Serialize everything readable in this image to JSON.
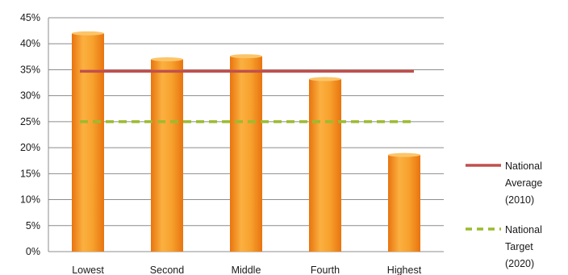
{
  "chart_data": {
    "type": "bar",
    "categories": [
      "Lowest",
      "Second",
      "Middle",
      "Fourth",
      "Highest"
    ],
    "values": [
      42,
      37,
      37.6,
      33.2,
      18.6
    ],
    "ylim": [
      0,
      45
    ],
    "yticks": [
      0,
      5,
      10,
      15,
      20,
      25,
      30,
      35,
      40,
      45
    ],
    "ytick_labels": [
      "0%",
      "5%",
      "10%",
      "15%",
      "20%",
      "25%",
      "30%",
      "35%",
      "40%",
      "45%"
    ],
    "grid": true,
    "reference_lines": [
      {
        "name_lines": [
          "National",
          "Average",
          "(2010)"
        ],
        "value": 34.7,
        "color": "#c0504d",
        "style": "solid"
      },
      {
        "name_lines": [
          "National",
          "Target",
          "(2020)"
        ],
        "value": 25,
        "color": "#9bbb2e",
        "style": "dashed"
      }
    ],
    "legend": "right",
    "colors": {
      "bar_light": "#fbb040",
      "bar_mid": "#f7941d",
      "bar_dark": "#e8740f",
      "grid": "#8c8c8c"
    }
  }
}
